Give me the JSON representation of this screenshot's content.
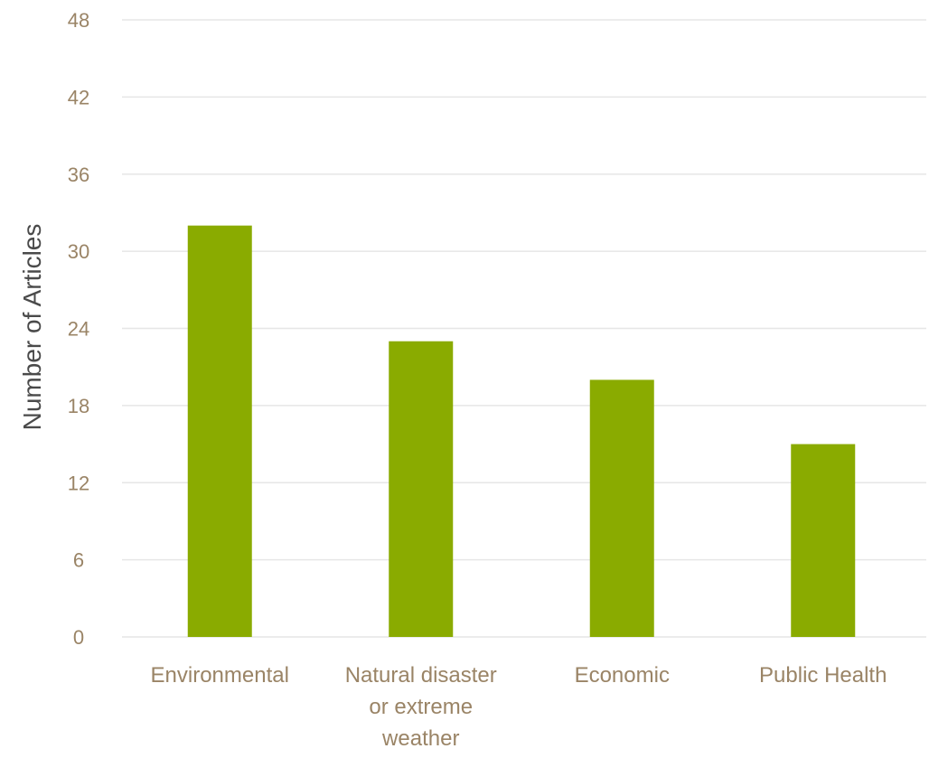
{
  "chart_data": {
    "type": "bar",
    "title": "",
    "xlabel": "",
    "ylabel": "Number of Articles",
    "categories": [
      [
        "Environmental"
      ],
      [
        "Natural disaster",
        "or extreme",
        "weather"
      ],
      [
        "Economic"
      ],
      [
        "Public Health"
      ]
    ],
    "values": [
      32,
      23,
      20,
      15
    ],
    "ylim": [
      0,
      48
    ],
    "yticks": [
      "0",
      "6",
      "12",
      "18",
      "24",
      "30",
      "36",
      "42",
      "48"
    ],
    "grid": true,
    "legend": "none",
    "bar_color": "#8aab00"
  }
}
